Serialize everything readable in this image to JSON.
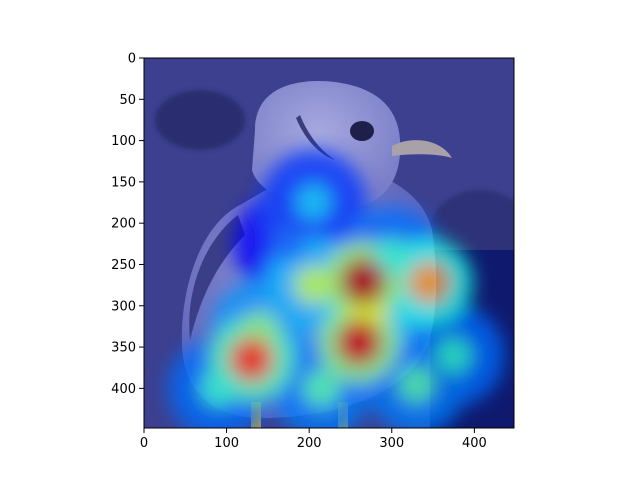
{
  "chart_data": {
    "type": "heatmap",
    "title": "",
    "xlabel": "",
    "ylabel": "",
    "xlim": [
      0,
      448
    ],
    "ylim": [
      448,
      0
    ],
    "x_ticks": [
      0,
      100,
      200,
      300,
      400
    ],
    "y_ticks": [
      0,
      50,
      100,
      150,
      200,
      250,
      300,
      350,
      400
    ],
    "colormap": "jet",
    "background_color": "#3b3f8f",
    "grid": false,
    "image": "bird photo with class-activation heatmap overlay",
    "hotspots": [
      {
        "x": 265,
        "y": 270,
        "intensity": 0.95
      },
      {
        "x": 345,
        "y": 272,
        "intensity": 0.72
      },
      {
        "x": 260,
        "y": 345,
        "intensity": 0.92
      },
      {
        "x": 130,
        "y": 365,
        "intensity": 0.82
      },
      {
        "x": 205,
        "y": 275,
        "intensity": 0.55
      },
      {
        "x": 270,
        "y": 310,
        "intensity": 0.6
      },
      {
        "x": 140,
        "y": 330,
        "intensity": 0.5
      },
      {
        "x": 375,
        "y": 360,
        "intensity": 0.42
      },
      {
        "x": 330,
        "y": 395,
        "intensity": 0.45
      },
      {
        "x": 90,
        "y": 400,
        "intensity": 0.42
      },
      {
        "x": 215,
        "y": 400,
        "intensity": 0.45
      },
      {
        "x": 205,
        "y": 175,
        "intensity": 0.32
      },
      {
        "x": 300,
        "y": 240,
        "intensity": 0.42
      },
      {
        "x": 175,
        "y": 225,
        "intensity": 0.22
      }
    ]
  }
}
